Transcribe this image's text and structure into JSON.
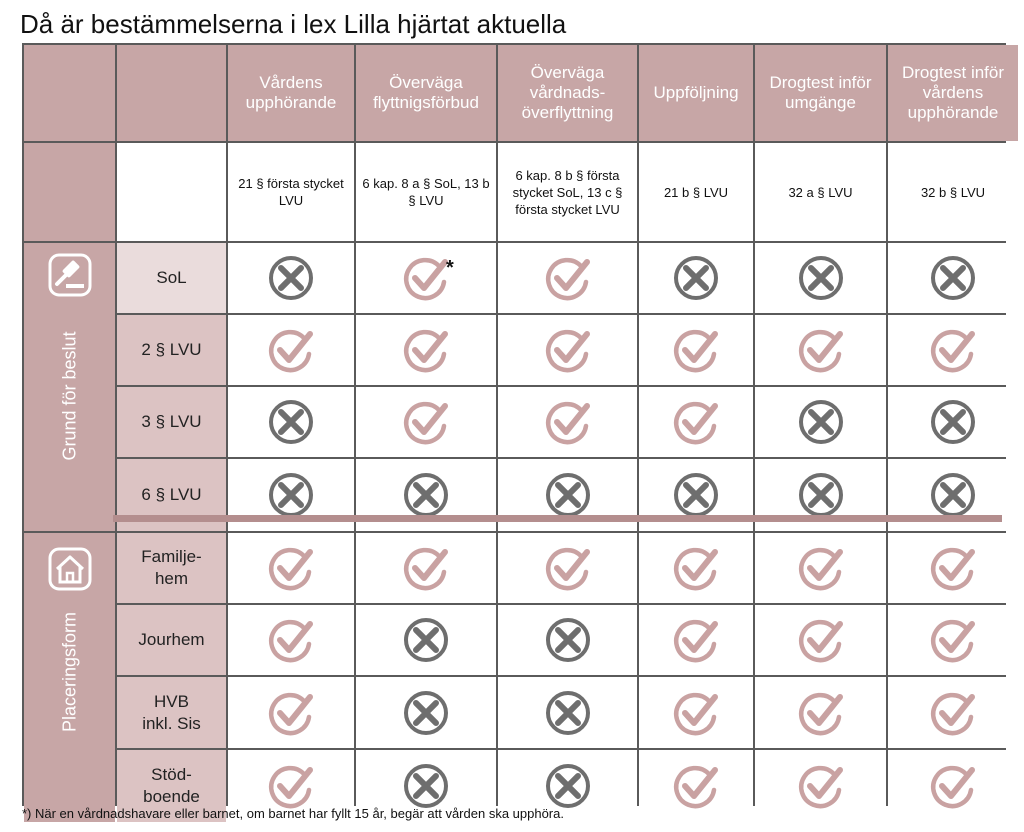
{
  "title": "Då är bestämmelserna i lex Lilla hjärtat aktuella",
  "columns": [
    {
      "header": "Vårdens upphörande",
      "law": "21 § första stycket LVU"
    },
    {
      "header": "Överväga flyttnigsförbud",
      "law": "6 kap. 8 a § SoL, 13 b § LVU"
    },
    {
      "header": "Överväga vårdnads-överflyttning",
      "law": "6 kap. 8 b § första stycket SoL, 13 c § första stycket LVU"
    },
    {
      "header": "Uppföljning",
      "law": "21 b § LVU"
    },
    {
      "header": "Drogtest inför umgänge",
      "law": "32 a § LVU"
    },
    {
      "header": "Drogtest inför vårdens upphörande",
      "law": "32 b § LVU"
    }
  ],
  "groups": [
    {
      "label": "Grund för beslut",
      "icon": "gavel-icon"
    },
    {
      "label": "Placeringsform",
      "icon": "house-icon"
    }
  ],
  "rows": [
    {
      "label": "SoL",
      "group": 0,
      "values": [
        "no",
        "yes*",
        "yes",
        "no",
        "no",
        "no"
      ]
    },
    {
      "label": "2 § LVU",
      "group": 0,
      "values": [
        "yes",
        "yes",
        "yes",
        "yes",
        "yes",
        "yes"
      ]
    },
    {
      "label": "3 § LVU",
      "group": 0,
      "values": [
        "no",
        "yes",
        "yes",
        "yes",
        "no",
        "no"
      ]
    },
    {
      "label": "6 § LVU",
      "group": 0,
      "values": [
        "no",
        "no",
        "no",
        "no",
        "no",
        "no"
      ]
    },
    {
      "label": "Familje-\nhem",
      "group": 1,
      "values": [
        "yes",
        "yes",
        "yes",
        "yes",
        "yes",
        "yes"
      ]
    },
    {
      "label": "Jourhem",
      "group": 1,
      "values": [
        "yes",
        "no",
        "no",
        "yes",
        "yes",
        "yes"
      ]
    },
    {
      "label": "HVB\ninkl. Sis",
      "group": 1,
      "values": [
        "yes",
        "no",
        "no",
        "yes",
        "yes",
        "yes"
      ]
    },
    {
      "label": "Stöd-\nboende",
      "group": 1,
      "values": [
        "yes",
        "no",
        "no",
        "yes",
        "yes",
        "yes"
      ]
    }
  ],
  "asterisk": "*",
  "footnote": "*) När en vårdnadshavare eller barnet, om barnet har fyllt 15 år, begär att vården ska upphöra.",
  "colors": {
    "header_bg": "#c7a6a6",
    "check": "#c9a2a2",
    "cross": "#6e6e6e"
  }
}
